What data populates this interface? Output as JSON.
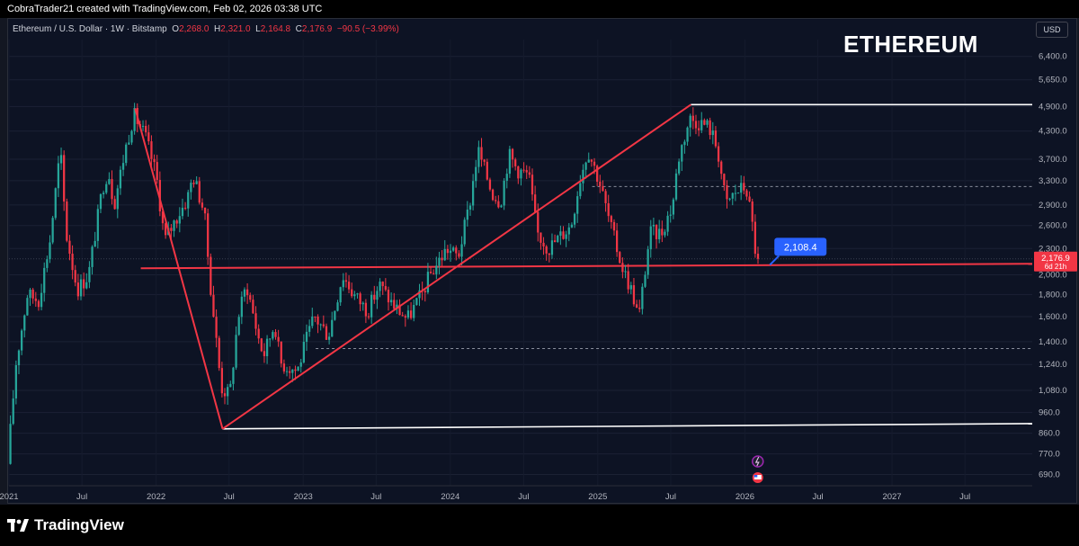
{
  "header": {
    "credit": "CobraTrader21 created with TradingView.com, Feb 02, 2026 03:38 UTC"
  },
  "symbol": {
    "name": "Ethereum / U.S. Dollar · 1W · Bitstamp",
    "open_label": "O",
    "open": "2,268.0",
    "high_label": "H",
    "high": "2,321.0",
    "low_label": "L",
    "low": "2,164.8",
    "close_label": "C",
    "close": "2,176.9",
    "change": "−90.5 (−3.99%)"
  },
  "title_overlay": "ETHEREUM",
  "currency": "USD",
  "footer": {
    "brand": "TradingView"
  },
  "colors": {
    "up": "#26a69a",
    "down": "#f23645",
    "trendline": "#f23645",
    "level": "#ffffff",
    "label_blue": "#2962ff"
  },
  "chart_data": {
    "type": "candlestick",
    "title": "",
    "ylabel": "USD",
    "y_scale": "log",
    "ylim": [
      650,
      7000
    ],
    "xlim": [
      "2021-01-01",
      "2027-12-15"
    ],
    "x_ticks": [
      {
        "date": "2021-01-01",
        "label": "2021"
      },
      {
        "date": "2021-07-01",
        "label": "Jul"
      },
      {
        "date": "2022-01-01",
        "label": "2022"
      },
      {
        "date": "2022-07-01",
        "label": "Jul"
      },
      {
        "date": "2023-01-01",
        "label": "2023"
      },
      {
        "date": "2023-07-01",
        "label": "Jul"
      },
      {
        "date": "2024-01-01",
        "label": "2024"
      },
      {
        "date": "2024-07-01",
        "label": "Jul"
      },
      {
        "date": "2025-01-01",
        "label": "2025"
      },
      {
        "date": "2025-07-01",
        "label": "Jul"
      },
      {
        "date": "2026-01-01",
        "label": "2026"
      },
      {
        "date": "2026-07-01",
        "label": "Jul"
      },
      {
        "date": "2027-01-01",
        "label": "2027"
      },
      {
        "date": "2027-07-01",
        "label": "Jul"
      }
    ],
    "y_ticks": [
      {
        "value": 690,
        "label": "690.0"
      },
      {
        "value": 770,
        "label": "770.0"
      },
      {
        "value": 860,
        "label": "860.0"
      },
      {
        "value": 960,
        "label": "960.0"
      },
      {
        "value": 1080,
        "label": "1,080.0"
      },
      {
        "value": 1240,
        "label": "1,240.0"
      },
      {
        "value": 1400,
        "label": "1,400.0"
      },
      {
        "value": 1600,
        "label": "1,600.0"
      },
      {
        "value": 1800,
        "label": "1,800.0"
      },
      {
        "value": 2000,
        "label": "2,000.0"
      },
      {
        "value": 2300,
        "label": "2,300.0"
      },
      {
        "value": 2600,
        "label": "2,600.0"
      },
      {
        "value": 2900,
        "label": "2,900.0"
      },
      {
        "value": 3300,
        "label": "3,300.0"
      },
      {
        "value": 3700,
        "label": "3,700.0"
      },
      {
        "value": 4300,
        "label": "4,300.0"
      },
      {
        "value": 4900,
        "label": "4,900.0"
      },
      {
        "value": 5650,
        "label": "5,650.0"
      },
      {
        "value": 6400,
        "label": "6,400.0"
      }
    ],
    "price_path": [
      [
        "2021-01-01",
        730
      ],
      [
        "2021-01-22",
        1250
      ],
      [
        "2021-02-19",
        1800
      ],
      [
        "2021-03-19",
        1750
      ],
      [
        "2021-04-16",
        2400
      ],
      [
        "2021-05-12",
        3900
      ],
      [
        "2021-05-26",
        2500
      ],
      [
        "2021-06-23",
        1850
      ],
      [
        "2021-07-21",
        2000
      ],
      [
        "2021-08-25",
        3200
      ],
      [
        "2021-09-08",
        3500
      ],
      [
        "2021-09-22",
        2900
      ],
      [
        "2021-10-20",
        3900
      ],
      [
        "2021-11-10",
        4700
      ],
      [
        "2021-12-08",
        4200
      ],
      [
        "2022-01-05",
        3400
      ],
      [
        "2022-01-26",
        2400
      ],
      [
        "2022-02-23",
        2700
      ],
      [
        "2022-03-23",
        3000
      ],
      [
        "2022-04-06",
        3400
      ],
      [
        "2022-05-04",
        2800
      ],
      [
        "2022-05-18",
        1950
      ],
      [
        "2022-06-15",
        1100
      ],
      [
        "2022-07-06",
        1050
      ],
      [
        "2022-07-27",
        1600
      ],
      [
        "2022-08-17",
        1900
      ],
      [
        "2022-09-14",
        1450
      ],
      [
        "2022-09-28",
        1300
      ],
      [
        "2022-10-26",
        1550
      ],
      [
        "2022-11-09",
        1250
      ],
      [
        "2022-12-21",
        1200
      ],
      [
        "2023-01-11",
        1400
      ],
      [
        "2023-02-01",
        1600
      ],
      [
        "2023-03-08",
        1450
      ],
      [
        "2023-04-12",
        2000
      ],
      [
        "2023-05-10",
        1800
      ],
      [
        "2023-06-14",
        1650
      ],
      [
        "2023-07-12",
        1900
      ],
      [
        "2023-08-16",
        1700
      ],
      [
        "2023-09-20",
        1580
      ],
      [
        "2023-10-25",
        1800
      ],
      [
        "2023-11-15",
        2000
      ],
      [
        "2023-12-27",
        2300
      ],
      [
        "2024-01-24",
        2200
      ],
      [
        "2024-02-21",
        2900
      ],
      [
        "2024-03-13",
        3900
      ],
      [
        "2024-04-17",
        3100
      ],
      [
        "2024-05-08",
        2950
      ],
      [
        "2024-05-29",
        3800
      ],
      [
        "2024-06-19",
        3500
      ],
      [
        "2024-07-17",
        3400
      ],
      [
        "2024-08-07",
        2500
      ],
      [
        "2024-09-04",
        2300
      ],
      [
        "2024-10-02",
        2450
      ],
      [
        "2024-10-30",
        2600
      ],
      [
        "2024-11-20",
        3300
      ],
      [
        "2024-12-11",
        3900
      ],
      [
        "2025-01-08",
        3300
      ],
      [
        "2025-02-05",
        2600
      ],
      [
        "2025-03-05",
        2100
      ],
      [
        "2025-04-02",
        1800
      ],
      [
        "2025-04-16",
        1580
      ],
      [
        "2025-05-14",
        2500
      ],
      [
        "2025-06-11",
        2500
      ],
      [
        "2025-07-09",
        2900
      ],
      [
        "2025-07-23",
        3700
      ],
      [
        "2025-08-20",
        4600
      ],
      [
        "2025-09-17",
        4500
      ],
      [
        "2025-10-08",
        4400
      ],
      [
        "2025-10-29",
        3900
      ],
      [
        "2025-11-19",
        2900
      ],
      [
        "2025-12-10",
        3100
      ],
      [
        "2026-01-07",
        3200
      ],
      [
        "2026-01-21",
        2700
      ],
      [
        "2026-02-02",
        2176.9
      ]
    ],
    "levels": [
      {
        "name": "upper",
        "from": "2025-08-20",
        "to": "2027-12-15",
        "y_start": 4950,
        "y_end": 4950
      },
      {
        "name": "lower",
        "from": "2022-06-15",
        "to": "2027-12-15",
        "y_start": 880,
        "y_end": 905
      },
      {
        "name": "support",
        "from": "2021-11-24",
        "to": "2027-12-15",
        "y_start": 2070,
        "y_end": 2120
      },
      {
        "name": "dashed-upper",
        "from": "2024-12-18",
        "to": "2027-12-15",
        "y_start": 3200,
        "y_end": 3200
      },
      {
        "name": "dashed-lower",
        "from": "2023-02-01",
        "to": "2027-12-15",
        "y_start": 1350,
        "y_end": 1350
      }
    ],
    "trendlines": [
      {
        "from": [
          "2021-11-10",
          4850
        ],
        "to": [
          "2022-06-15",
          880
        ]
      },
      {
        "from": [
          "2022-06-15",
          880
        ],
        "to": [
          "2025-08-20",
          4950
        ]
      }
    ],
    "callout": {
      "label": "2,108.4",
      "value": 2108.4,
      "date": "2026-03-04"
    },
    "last_price": {
      "value": 2176.9,
      "label": "2,176.9",
      "countdown": "6d 21h"
    }
  }
}
